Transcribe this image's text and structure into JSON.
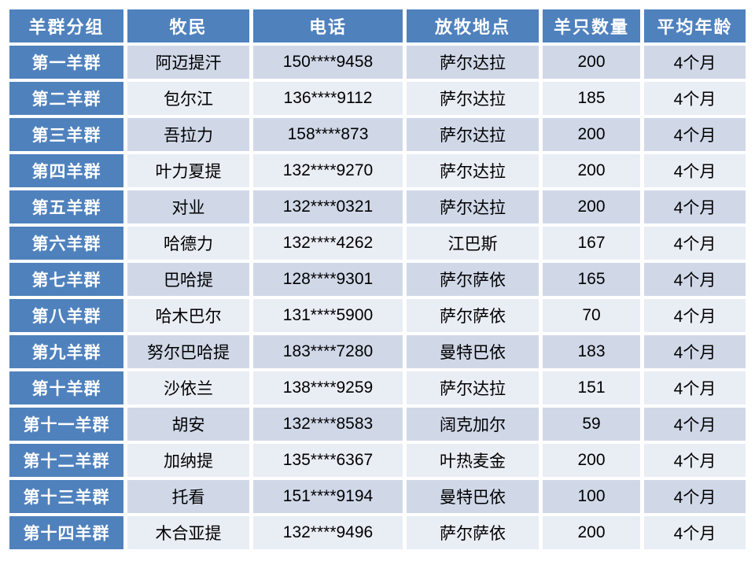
{
  "chart_data": {
    "type": "table",
    "columns": [
      "羊群分组",
      "牧民",
      "电话",
      "放牧地点",
      "羊只数量",
      "平均年龄"
    ],
    "rows": [
      [
        "第一羊群",
        "阿迈提汗",
        "150****9458",
        "萨尔达拉",
        "200",
        "4个月"
      ],
      [
        "第二羊群",
        "包尔江",
        "136****9112",
        "萨尔达拉",
        "185",
        "4个月"
      ],
      [
        "第三羊群",
        "吾拉力",
        "158****873",
        "萨尔达拉",
        "200",
        "4个月"
      ],
      [
        "第四羊群",
        "叶力夏提",
        "132****9270",
        "萨尔达拉",
        "200",
        "4个月"
      ],
      [
        "第五羊群",
        "对业",
        "132****0321",
        "萨尔达拉",
        "200",
        "4个月"
      ],
      [
        "第六羊群",
        "哈德力",
        "132****4262",
        "江巴斯",
        "167",
        "4个月"
      ],
      [
        "第七羊群",
        "巴哈提",
        "128****9301",
        "萨尔萨依",
        "165",
        "4个月"
      ],
      [
        "第八羊群",
        "哈木巴尔",
        "131****5900",
        "萨尔萨依",
        "70",
        "4个月"
      ],
      [
        "第九羊群",
        "努尔巴哈提",
        "183****7280",
        "曼特巴依",
        "183",
        "4个月"
      ],
      [
        "第十羊群",
        "沙依兰",
        "138****9259",
        "萨尔达拉",
        "151",
        "4个月"
      ],
      [
        "第十一羊群",
        "胡安",
        "132****8583",
        "阔克加尔",
        "59",
        "4个月"
      ],
      [
        "第十二羊群",
        "加纳提",
        "135****6367",
        "叶热麦金",
        "200",
        "4个月"
      ],
      [
        "第十三羊群",
        "托看",
        "151****9194",
        "曼特巴依",
        "100",
        "4个月"
      ],
      [
        "第十四羊群",
        "木合亚提",
        "132****9496",
        "萨尔萨依",
        "200",
        "4个月"
      ]
    ]
  },
  "colors": {
    "header_bg": "#4F81BD",
    "band_dark": "#D0D8E8",
    "band_light": "#E9EDF4",
    "header_text": "#FFFFFF",
    "body_text": "#000000",
    "background": "#FFFFFF"
  }
}
